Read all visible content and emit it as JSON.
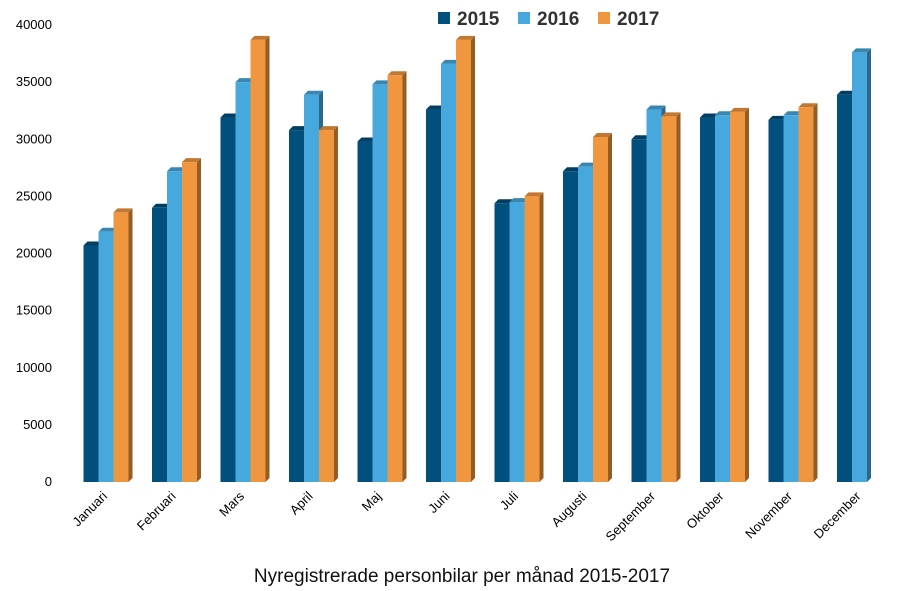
{
  "chart_data": {
    "type": "bar",
    "title": "Nyregistrerade personbilar per månad 2015-2017",
    "xlabel": "",
    "ylabel": "",
    "ylim": [
      0,
      40000
    ],
    "yticks": [
      0,
      5000,
      10000,
      15000,
      20000,
      25000,
      30000,
      35000,
      40000
    ],
    "legend_position": "top",
    "grid": false,
    "categories": [
      "Januari",
      "Februari",
      "Mars",
      "April",
      "Maj",
      "Juni",
      "Juli",
      "Augusti",
      "September",
      "Oktober",
      "November",
      "December"
    ],
    "series": [
      {
        "name": "2015",
        "color": "#004f7c",
        "values": [
          20700,
          24000,
          31900,
          30800,
          29800,
          32600,
          24400,
          27200,
          30000,
          31900,
          31700,
          33900
        ]
      },
      {
        "name": "2016",
        "color": "#47a8dd",
        "values": [
          21900,
          27200,
          35000,
          33900,
          34800,
          36600,
          24500,
          27600,
          32600,
          32100,
          32100,
          37600
        ]
      },
      {
        "name": "2017",
        "color": "#f0963e",
        "values": [
          23600,
          28000,
          38700,
          30800,
          35600,
          38700,
          25000,
          30200,
          32000,
          32400,
          32800,
          null
        ]
      }
    ]
  }
}
